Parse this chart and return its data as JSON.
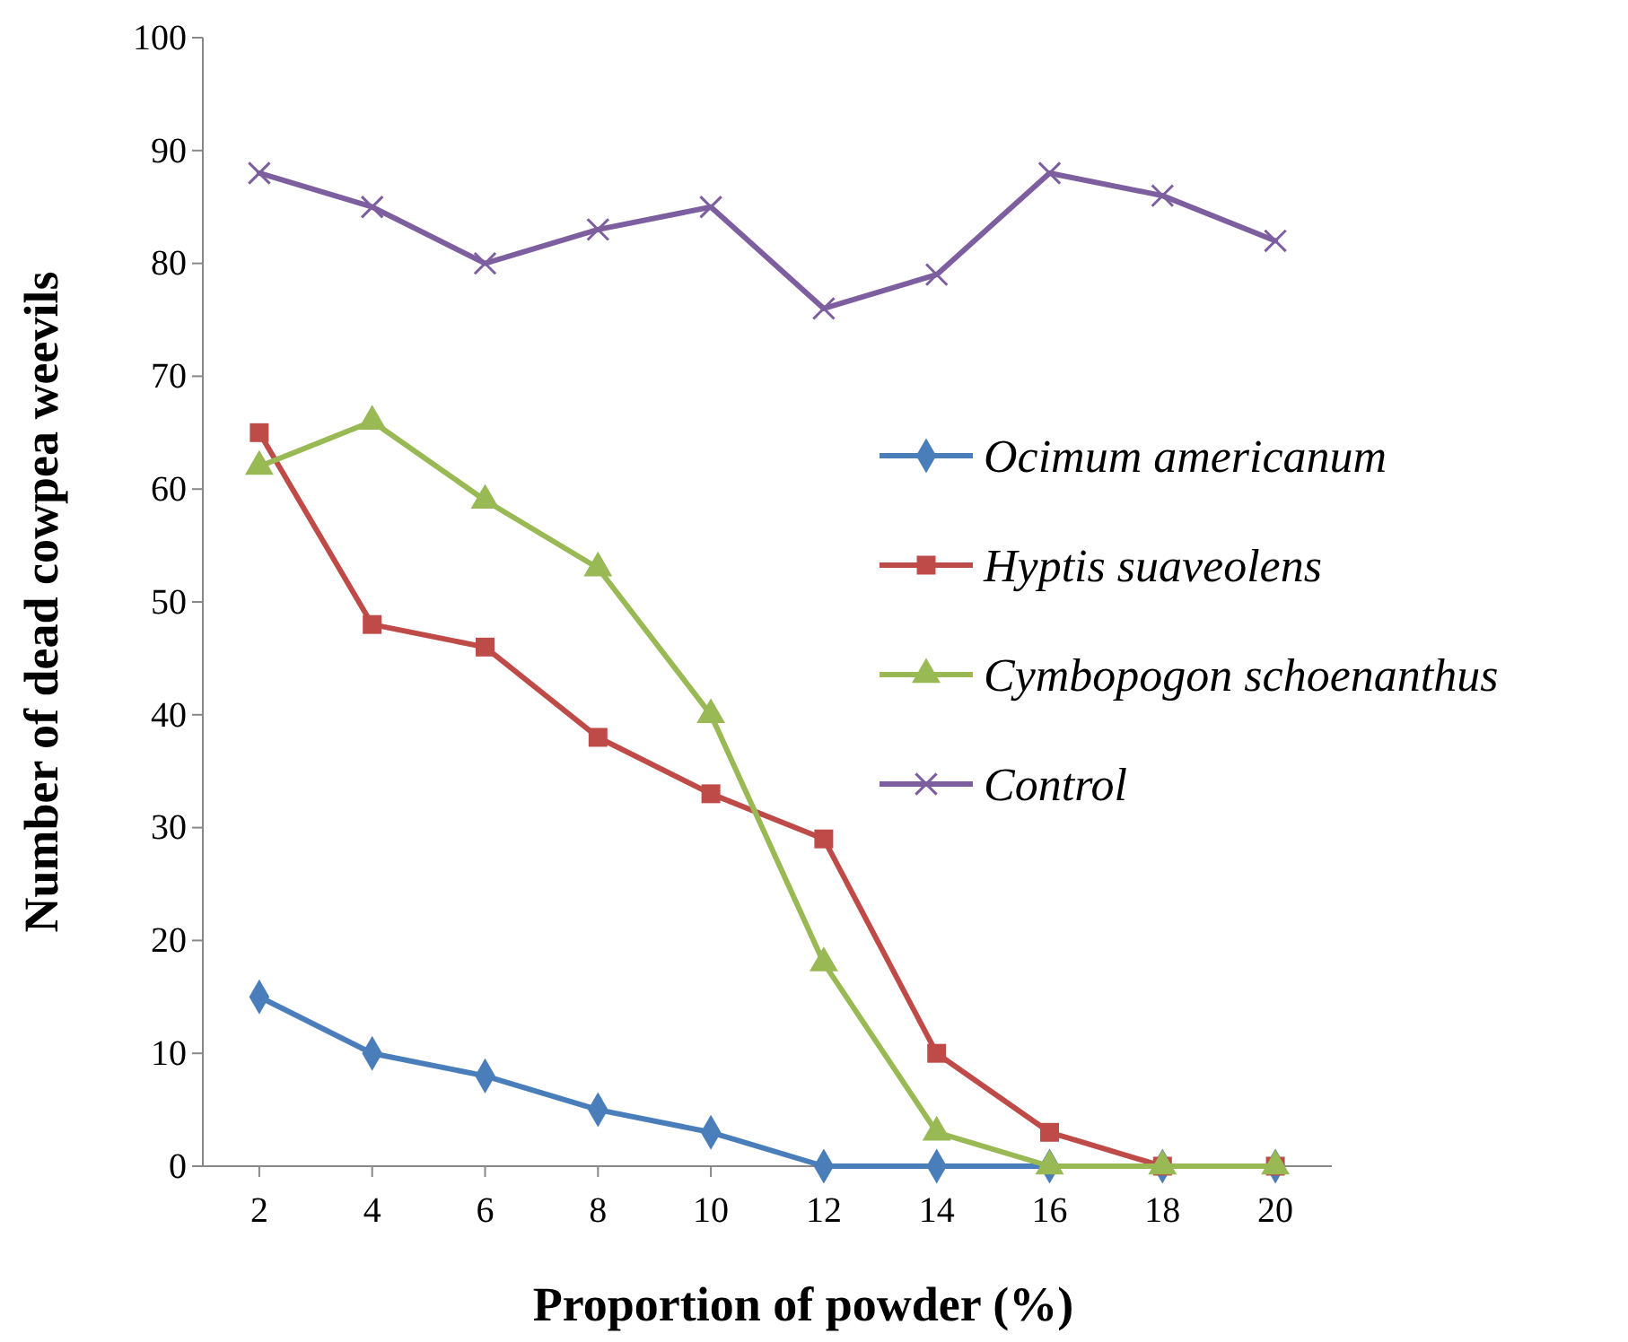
{
  "chart_data": {
    "type": "line",
    "xlabel": "Proportion of powder (%)",
    "ylabel": "Number of dead cowpea weevils",
    "categories": [
      "2",
      "4",
      "6",
      "8",
      "10",
      "12",
      "14",
      "16",
      "18",
      "20"
    ],
    "ylim": [
      0,
      100
    ],
    "yticks": [
      0,
      10,
      20,
      30,
      40,
      50,
      60,
      70,
      80,
      90,
      100
    ],
    "grid": false,
    "legend": "right",
    "series": [
      {
        "name": "Ocimum americanum",
        "color": "#4a7ebb",
        "marker": "diamond",
        "values": [
          15,
          10,
          8,
          5,
          3,
          0,
          0,
          0,
          0,
          0
        ]
      },
      {
        "name": "Hyptis suaveolens",
        "color": "#be4b48",
        "marker": "square",
        "values": [
          65,
          48,
          46,
          38,
          33,
          29,
          10,
          3,
          0,
          0
        ]
      },
      {
        "name": "Cymbopogon schoenanthus",
        "color": "#98b954",
        "marker": "triangle",
        "values": [
          62,
          66,
          59,
          53,
          40,
          18,
          3,
          0,
          0,
          0
        ]
      },
      {
        "name": "Control",
        "color": "#7d5fa0",
        "marker": "cross",
        "values": [
          88,
          85,
          80,
          83,
          85,
          76,
          79,
          88,
          86,
          82
        ]
      }
    ]
  }
}
